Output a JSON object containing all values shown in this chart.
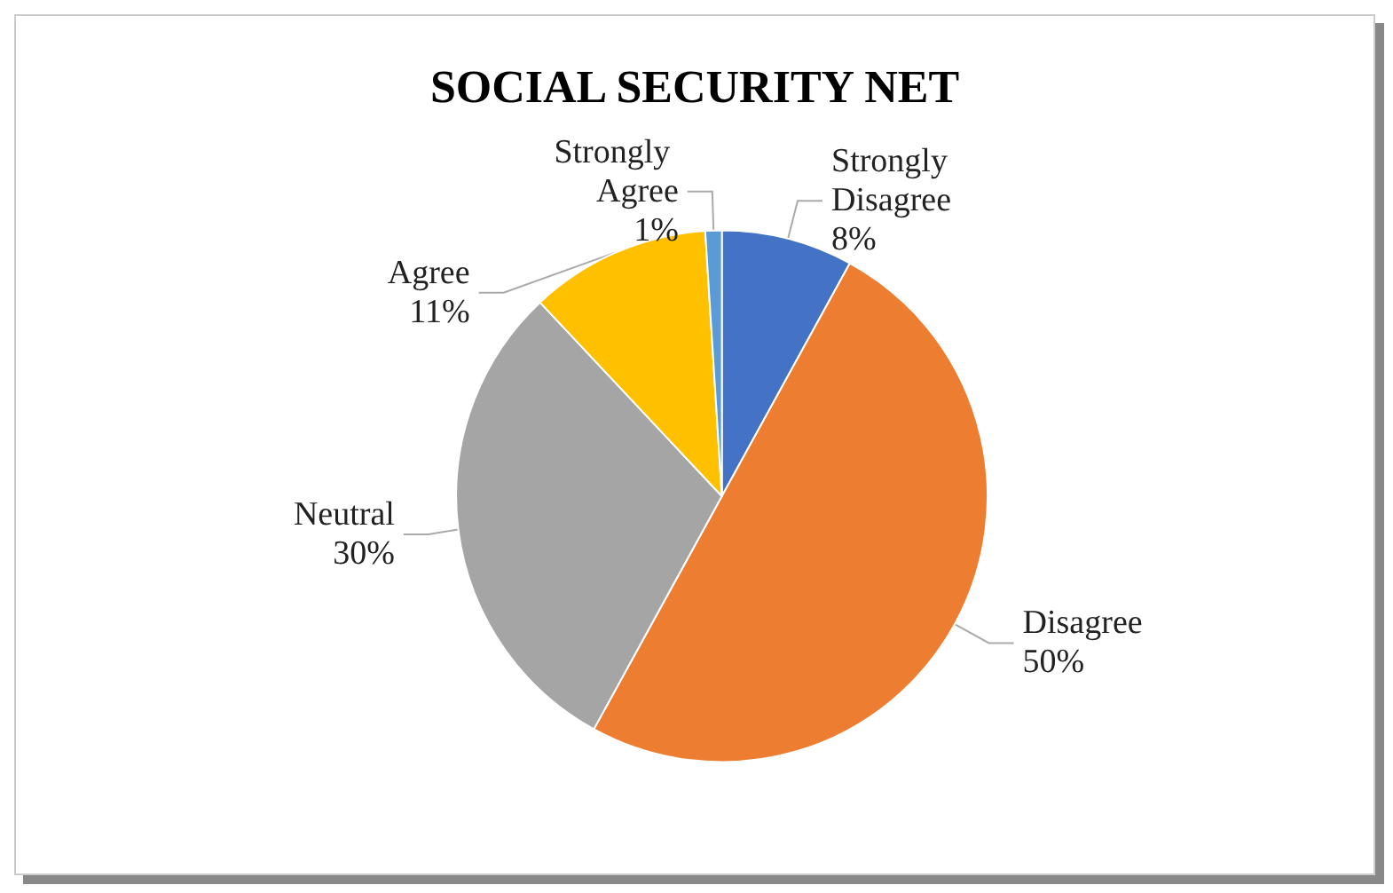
{
  "chart_data": {
    "type": "pie",
    "title": "SOCIAL SECURITY NET",
    "categories": [
      "Strongly Disagree",
      "Disagree",
      "Neutral",
      "Agree",
      "Strongly Agree"
    ],
    "values": [
      8,
      50,
      30,
      11,
      1
    ],
    "value_labels": [
      "8%",
      "50%",
      "30%",
      "11%",
      "1%"
    ],
    "colors": [
      "#4472c4",
      "#ed7d31",
      "#a5a5a5",
      "#ffc000",
      "#5b9bd5"
    ],
    "legend": false
  }
}
